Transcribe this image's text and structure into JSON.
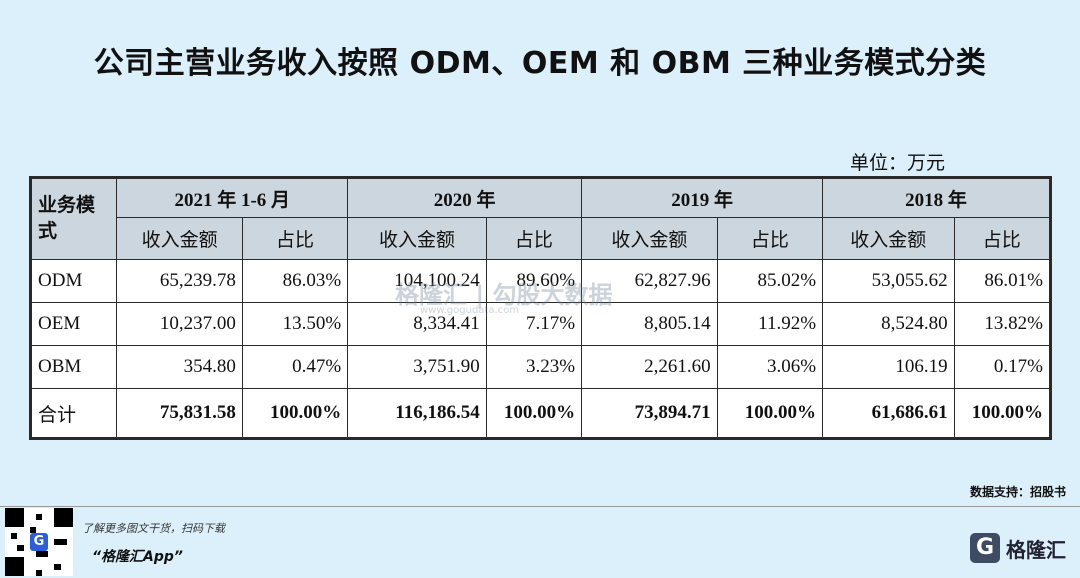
{
  "title": "公司主营业务收入按照 ODM、OEM 和 OBM 三种业务模式分类",
  "unit": "单位：万元",
  "table": {
    "mode_header": "业务模式",
    "periods": [
      "2021 年 1-6 月",
      "2020 年",
      "2019 年",
      "2018 年"
    ],
    "sub_headers": {
      "revenue": "收入金额",
      "share": "占比"
    },
    "rows": [
      {
        "label": "ODM",
        "cells": [
          "65,239.78",
          "86.03%",
          "104,100.24",
          "89.60%",
          "62,827.96",
          "85.02%",
          "53,055.62",
          "86.01%"
        ]
      },
      {
        "label": "OEM",
        "cells": [
          "10,237.00",
          "13.50%",
          "8,334.41",
          "7.17%",
          "8,805.14",
          "11.92%",
          "8,524.80",
          "13.82%"
        ]
      },
      {
        "label": "OBM",
        "cells": [
          "354.80",
          "0.47%",
          "3,751.90",
          "3.23%",
          "2,261.60",
          "3.06%",
          "106.19",
          "0.17%"
        ]
      }
    ],
    "total": {
      "label": "合计",
      "cells": [
        "75,831.58",
        "100.00%",
        "116,186.54",
        "100.00%",
        "73,894.71",
        "100.00%",
        "61,686.61",
        "100.00%"
      ]
    }
  },
  "watermark": {
    "text": "格隆汇 | 勾股大数据",
    "sub": "www.gogudata.com"
  },
  "footer": {
    "source": "数据支持：招股书",
    "promo_line": "了解更多图文干货，扫码下载",
    "app_name": "“格隆汇App”",
    "brand": "格隆汇"
  }
}
